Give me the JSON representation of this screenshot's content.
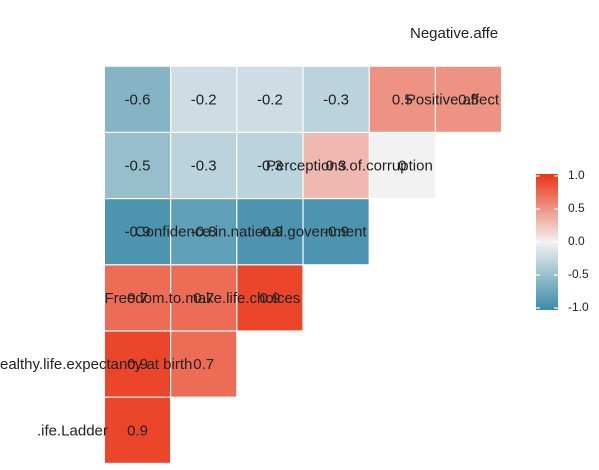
{
  "chart_data": {
    "type": "heatmap",
    "variables": [
      "Life.Ladder",
      "Healthy.life.expectancy.at.birth",
      "Freedom.to.make.life.choices",
      "Confidence.in.national.government",
      "Perceptions.of.corruption",
      "Positive.affect",
      "Negative.affect"
    ],
    "shown_labels": [
      ".ife.Ladder",
      "ealthy.life.expectancy at birth",
      "Freedom.to.make.life.choices",
      "Confidence.in.national.government",
      "Perceptions.of.corruption",
      "Positive.affect",
      "Negative.affe"
    ],
    "cells": [
      {
        "row": 1,
        "col": 0,
        "value": 0.9,
        "label": "0.9"
      },
      {
        "row": 2,
        "col": 0,
        "value": 0.9,
        "label": "0.9"
      },
      {
        "row": 2,
        "col": 1,
        "value": 0.7,
        "label": "0.7"
      },
      {
        "row": 3,
        "col": 0,
        "value": 0.7,
        "label": "0.7"
      },
      {
        "row": 3,
        "col": 1,
        "value": 0.7,
        "label": "0.7"
      },
      {
        "row": 3,
        "col": 2,
        "value": 0.9,
        "label": "0.9"
      },
      {
        "row": 4,
        "col": 0,
        "value": -0.9,
        "label": "-0.9"
      },
      {
        "row": 4,
        "col": 1,
        "value": -0.8,
        "label": "-0.8"
      },
      {
        "row": 4,
        "col": 2,
        "value": -0.9,
        "label": "-0.9"
      },
      {
        "row": 4,
        "col": 3,
        "value": -0.9,
        "label": "-0.9"
      },
      {
        "row": 5,
        "col": 0,
        "value": -0.5,
        "label": "-0.5"
      },
      {
        "row": 5,
        "col": 1,
        "value": -0.3,
        "label": "-0.3"
      },
      {
        "row": 5,
        "col": 2,
        "value": -0.3,
        "label": "-0.3"
      },
      {
        "row": 5,
        "col": 3,
        "value": 0.3,
        "label": "0.3"
      },
      {
        "row": 5,
        "col": 4,
        "value": 0.0,
        "label": "0"
      },
      {
        "row": 6,
        "col": 0,
        "value": -0.6,
        "label": "-0.6"
      },
      {
        "row": 6,
        "col": 1,
        "value": -0.2,
        "label": "-0.2"
      },
      {
        "row": 6,
        "col": 2,
        "value": -0.2,
        "label": "-0.2"
      },
      {
        "row": 6,
        "col": 3,
        "value": -0.3,
        "label": "-0.3"
      },
      {
        "row": 6,
        "col": 4,
        "value": 0.5,
        "label": "0.5"
      },
      {
        "row": 6,
        "col": 5,
        "value": 0.5,
        "label": "0.5"
      }
    ],
    "color_scale": {
      "low": "#3a8aa8",
      "mid": "#f2f2f2",
      "high": "#ea3313",
      "limits": [
        -1,
        1
      ]
    },
    "legend": {
      "ticks": [
        "1.0",
        "0.5",
        "0.0",
        "-0.5",
        "-1.0"
      ],
      "tick_values": [
        1.0,
        0.5,
        0.0,
        -0.5,
        -1.0
      ],
      "position": "right"
    },
    "grid": false
  }
}
